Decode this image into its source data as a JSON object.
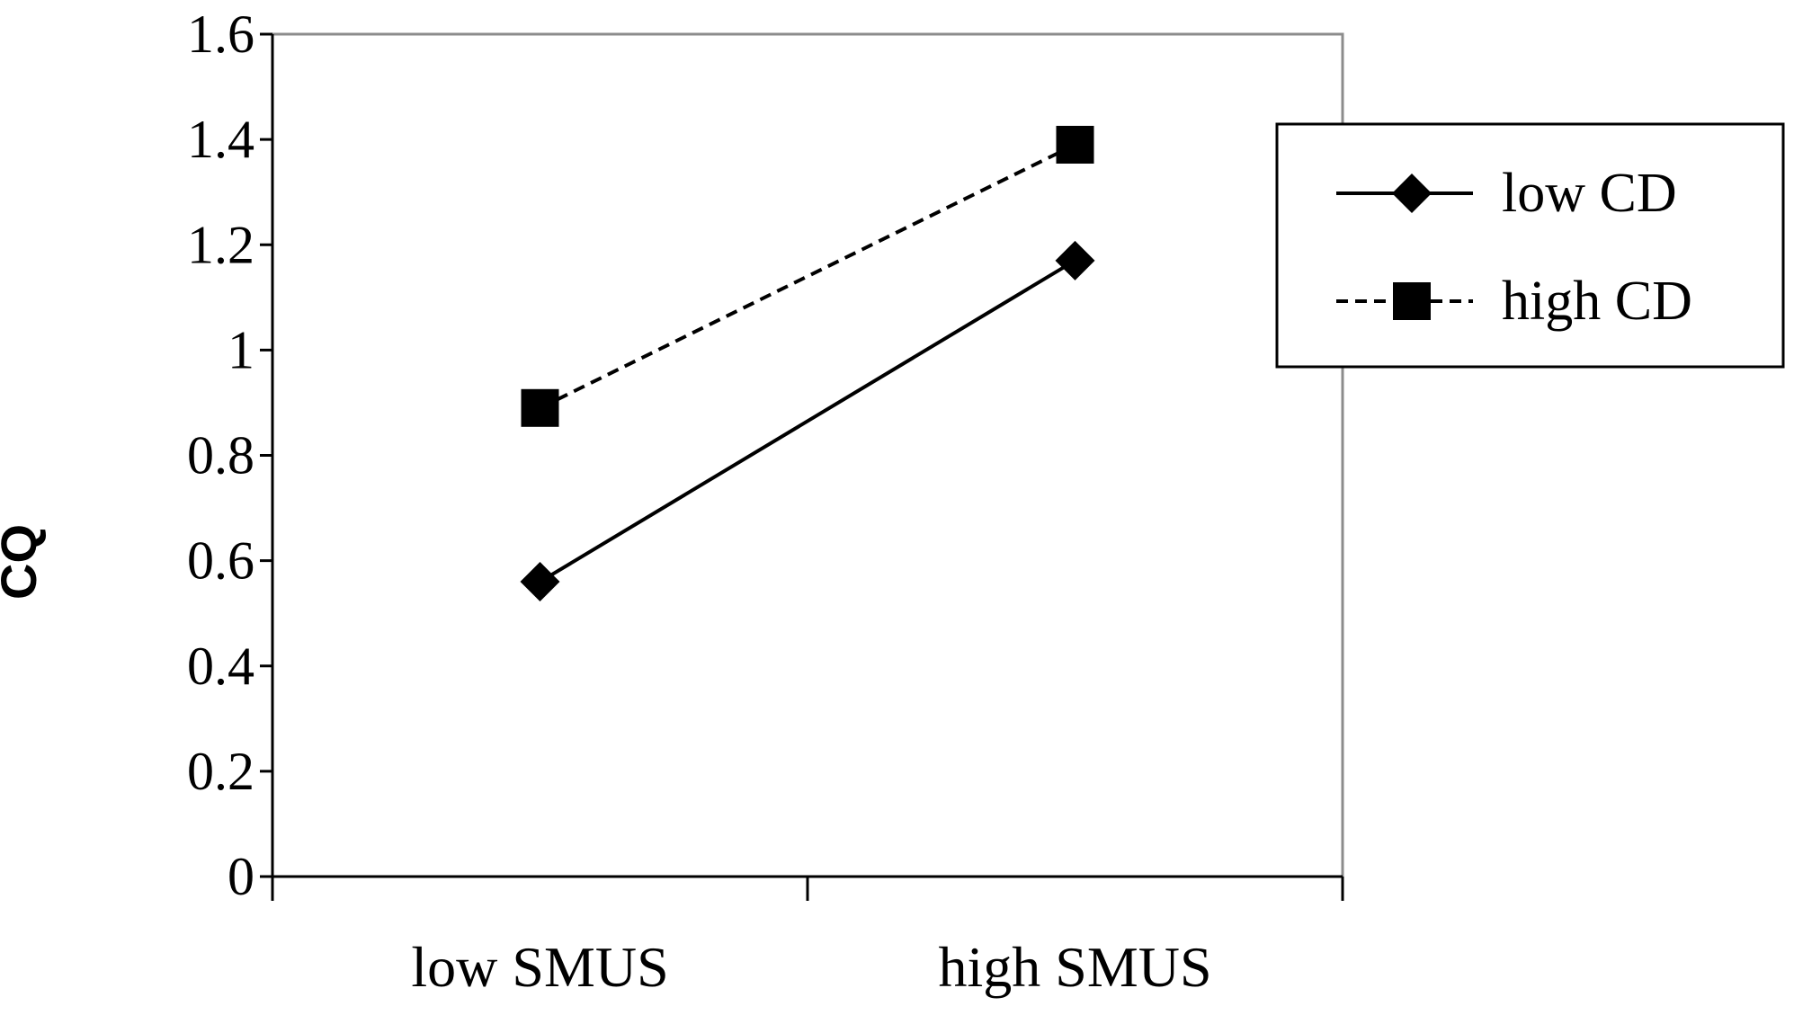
{
  "chart_data": {
    "type": "line",
    "title": "",
    "xlabel": "",
    "ylabel": "CQ",
    "categories": [
      "low SMUS",
      "high SMUS"
    ],
    "ylim": [
      0,
      1.6
    ],
    "yticks": [
      "0",
      "0.2",
      "0.4",
      "0.6",
      "0.8",
      "1",
      "1.2",
      "1.4",
      "1.6"
    ],
    "grid": false,
    "legend_position": "right",
    "series": [
      {
        "name": "low CD",
        "values": [
          0.56,
          1.17
        ],
        "marker": "diamond",
        "line_style": "solid",
        "color": "#000000"
      },
      {
        "name": "high CD",
        "values": [
          0.89,
          1.39
        ],
        "marker": "square",
        "line_style": "dashed",
        "color": "#000000"
      }
    ]
  }
}
